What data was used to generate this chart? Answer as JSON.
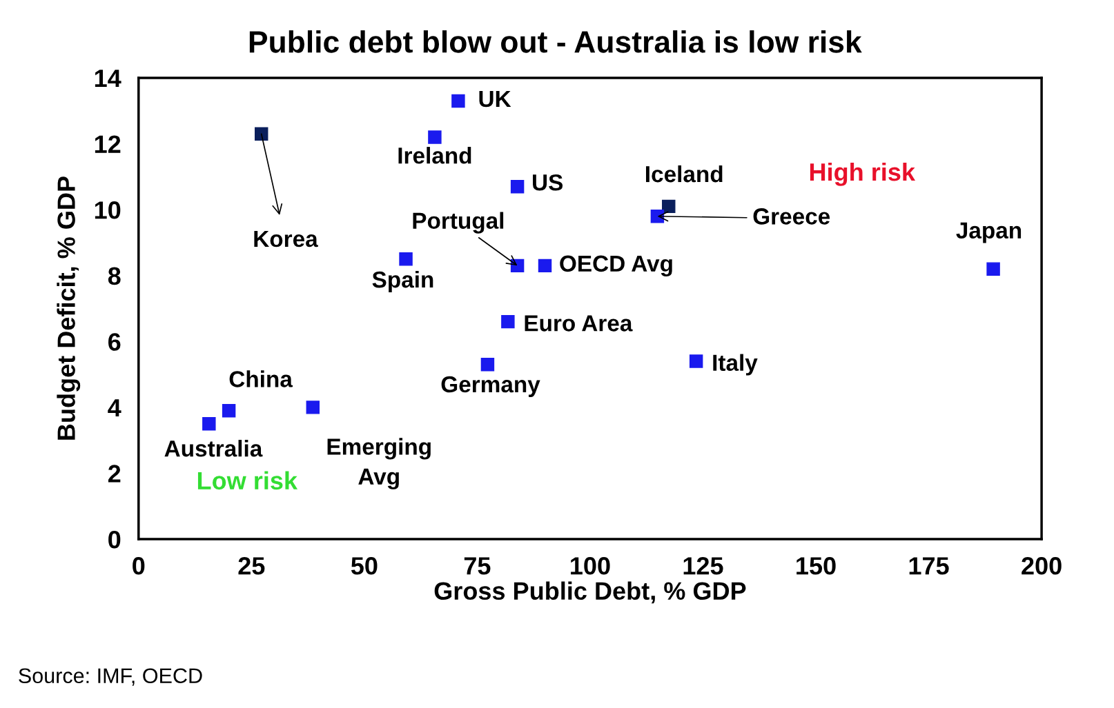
{
  "chart_data": {
    "type": "scatter",
    "title": "Public debt blow out - Australia is low risk",
    "xlabel": "Gross Public Debt, % GDP",
    "ylabel": "Budget Deficit, % GDP",
    "x": [
      70.8,
      27.2,
      65.6,
      83.9,
      117.4,
      114.9,
      59.2,
      83.9,
      90.0,
      189.3,
      81.8,
      123.5,
      77.3,
      38.6,
      20.0,
      15.6
    ],
    "values": [
      13.3,
      12.3,
      12.2,
      10.7,
      10.1,
      9.8,
      8.5,
      8.3,
      8.3,
      8.2,
      6.6,
      5.4,
      5.3,
      4.0,
      3.9,
      3.5
    ],
    "colors": [
      "#1a1aee",
      "#0a1f5c",
      "#1a1aee",
      "#1a1aee",
      "#0a1f5c",
      "#1a1aee",
      "#1a1aee",
      "#1a1aee",
      "#1a1aee",
      "#1a1aee",
      "#1a1aee",
      "#1a1aee",
      "#1a1aee",
      "#1a1aee",
      "#1a1aee",
      "#1a1aee"
    ],
    "marker": "square",
    "grid": false,
    "legend": false,
    "xlim": [
      0,
      200
    ],
    "xticks": [
      0,
      25,
      50,
      75,
      100,
      125,
      150,
      175,
      200
    ],
    "ylim": [
      0,
      14
    ],
    "yticks": [
      0,
      2,
      4,
      6,
      8,
      10,
      12,
      14
    ],
    "annotations": [
      {
        "text": "UK",
        "x": 70.8,
        "y": 13.3
      },
      {
        "text": "Korea",
        "x": 27.2,
        "y": 12.3
      },
      {
        "text": "Ireland",
        "x": 65.6,
        "y": 12.2
      },
      {
        "text": "US",
        "x": 83.9,
        "y": 10.7
      },
      {
        "text": "Iceland",
        "x": 117.4,
        "y": 10.1
      },
      {
        "text": "Greece",
        "x": 114.9,
        "y": 9.8
      },
      {
        "text": "Spain",
        "x": 59.2,
        "y": 8.5
      },
      {
        "text": "Portugal",
        "x": 83.9,
        "y": 8.3
      },
      {
        "text": "OECD Avg",
        "x": 90.0,
        "y": 8.3
      },
      {
        "text": "Japan",
        "x": 189.3,
        "y": 8.2
      },
      {
        "text": "Euro Area",
        "x": 81.8,
        "y": 6.6
      },
      {
        "text": "Italy",
        "x": 123.5,
        "y": 5.4
      },
      {
        "text": "Germany",
        "x": 77.3,
        "y": 5.3
      },
      {
        "text": "Emerging\nAvg",
        "x": 38.6,
        "y": 4.0
      },
      {
        "text": "China",
        "x": 20.0,
        "y": 3.9
      },
      {
        "text": "Australia",
        "x": 15.6,
        "y": 3.5
      },
      "High risk",
      "Low risk",
      "Source: IMF, OECD"
    ]
  }
}
